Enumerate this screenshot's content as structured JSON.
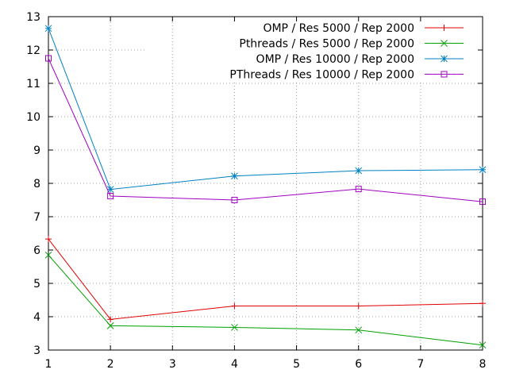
{
  "chart_data": {
    "type": "line",
    "title": "",
    "xlabel": "",
    "ylabel": "",
    "xlim": [
      1,
      8
    ],
    "ylim": [
      3,
      13
    ],
    "x_ticks": [
      1,
      2,
      3,
      4,
      5,
      6,
      7,
      8
    ],
    "y_ticks": [
      3,
      4,
      5,
      6,
      7,
      8,
      9,
      10,
      11,
      12,
      13
    ],
    "grid": true,
    "legend_position": "top-right",
    "series": [
      {
        "name": "OMP / Res 5000 / Rep 2000",
        "color": "#e00000",
        "marker": "plus",
        "x": [
          1,
          2,
          4,
          6,
          8
        ],
        "y": [
          6.33,
          3.92,
          4.32,
          4.32,
          4.4
        ]
      },
      {
        "name": "Pthreads / Res 5000 / Rep 2000",
        "color": "#00a000",
        "marker": "cross",
        "x": [
          1,
          2,
          4,
          6,
          8
        ],
        "y": [
          5.85,
          3.73,
          3.68,
          3.6,
          3.15
        ]
      },
      {
        "name": "OMP / Res 10000 / Rep 2000",
        "color": "#0080c0",
        "marker": "star",
        "x": [
          1,
          2,
          4,
          6,
          8
        ],
        "y": [
          12.65,
          7.82,
          8.22,
          8.38,
          8.41
        ]
      },
      {
        "name": "PThreads / Res 10000 / Rep 2000",
        "color": "#a000c0",
        "marker": "square",
        "x": [
          1,
          2,
          4,
          6,
          8
        ],
        "y": [
          11.75,
          7.62,
          7.5,
          7.83,
          7.45
        ]
      }
    ]
  }
}
